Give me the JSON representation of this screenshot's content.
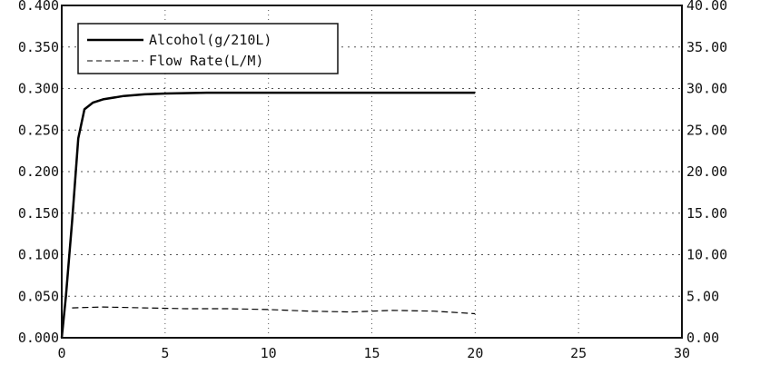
{
  "chart_data": {
    "type": "line",
    "title": "",
    "xlabel": "",
    "ylabel": "",
    "y2label": "",
    "xlim": [
      0,
      30
    ],
    "ylim": [
      0.0,
      0.4
    ],
    "y2lim": [
      0.0,
      40.0
    ],
    "grid": true,
    "legend_position": "top-left",
    "x_ticks": [
      "0",
      "5",
      "10",
      "15",
      "20",
      "25",
      "30"
    ],
    "y_ticks": [
      "0.000",
      "0.050",
      "0.100",
      "0.150",
      "0.200",
      "0.250",
      "0.300",
      "0.350",
      "0.400"
    ],
    "y2_ticks": [
      "0.00",
      "5.00",
      "10.00",
      "15.00",
      "20.00",
      "25.00",
      "30.00",
      "35.00",
      "40.00"
    ],
    "series": [
      {
        "name": "Alcohol(g/210L)",
        "axis": "left",
        "style": "solid",
        "color": "#000000",
        "x": [
          0,
          0.2,
          0.5,
          0.8,
          1.1,
          1.5,
          2.0,
          3.0,
          4.0,
          5.0,
          7.0,
          10.0,
          15.0,
          20.0
        ],
        "y": [
          0.0,
          0.05,
          0.14,
          0.24,
          0.275,
          0.283,
          0.287,
          0.291,
          0.293,
          0.294,
          0.295,
          0.295,
          0.295,
          0.295
        ]
      },
      {
        "name": "Flow Rate(L/M)",
        "axis": "right",
        "style": "dashed",
        "color": "#000000",
        "x": [
          0.5,
          2,
          4,
          6,
          8,
          10,
          12,
          14,
          16,
          18,
          20
        ],
        "y": [
          3.6,
          3.7,
          3.6,
          3.5,
          3.5,
          3.4,
          3.2,
          3.1,
          3.3,
          3.2,
          2.9
        ]
      }
    ]
  }
}
